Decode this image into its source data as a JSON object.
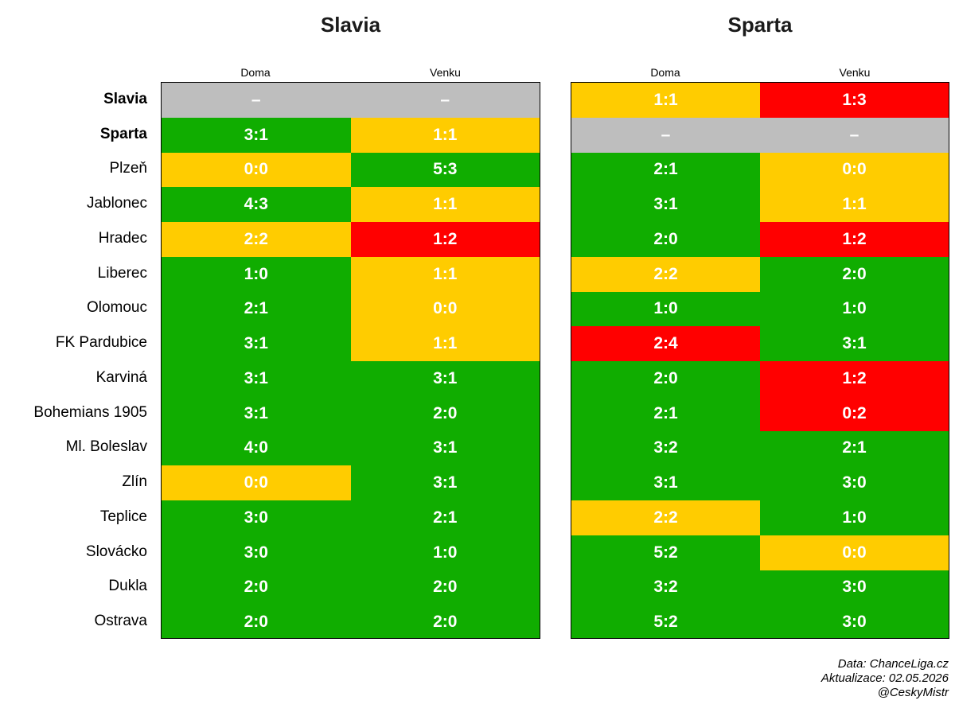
{
  "chart_data": {
    "type": "table",
    "colors": {
      "win": "#10AD00",
      "draw": "#FFCC00",
      "loss": "#FF0000",
      "na": "#BEBEBE"
    },
    "rows": [
      "Slavia",
      "Sparta",
      "Plzeň",
      "Jablonec",
      "Hradec",
      "Liberec",
      "Olomouc",
      "FK Pardubice",
      "Karviná",
      "Bohemians 1905",
      "Ml. Boleslav",
      "Zlín",
      "Teplice",
      "Slovácko",
      "Dukla",
      "Ostrava"
    ],
    "bold_rows": [
      "Slavia",
      "Sparta"
    ],
    "panels": [
      {
        "title": "Slavia",
        "columns": [
          "Doma",
          "Venku"
        ],
        "results": [
          [
            "–",
            "–"
          ],
          [
            "3:1",
            "1:1"
          ],
          [
            "0:0",
            "5:3"
          ],
          [
            "4:3",
            "1:1"
          ],
          [
            "2:2",
            "1:2"
          ],
          [
            "1:0",
            "1:1"
          ],
          [
            "2:1",
            "0:0"
          ],
          [
            "3:1",
            "1:1"
          ],
          [
            "3:1",
            "3:1"
          ],
          [
            "3:1",
            "2:0"
          ],
          [
            "4:0",
            "3:1"
          ],
          [
            "0:0",
            "3:1"
          ],
          [
            "3:0",
            "2:1"
          ],
          [
            "3:0",
            "1:0"
          ],
          [
            "2:0",
            "2:0"
          ],
          [
            "2:0",
            "2:0"
          ]
        ]
      },
      {
        "title": "Sparta",
        "columns": [
          "Doma",
          "Venku"
        ],
        "results": [
          [
            "1:1",
            "1:3"
          ],
          [
            "–",
            "–"
          ],
          [
            "2:1",
            "0:0"
          ],
          [
            "3:1",
            "1:1"
          ],
          [
            "2:0",
            "1:2"
          ],
          [
            "2:2",
            "2:0"
          ],
          [
            "1:0",
            "1:0"
          ],
          [
            "2:4",
            "3:1"
          ],
          [
            "2:0",
            "1:2"
          ],
          [
            "2:1",
            "0:2"
          ],
          [
            "3:2",
            "2:1"
          ],
          [
            "3:1",
            "3:0"
          ],
          [
            "2:2",
            "1:0"
          ],
          [
            "5:2",
            "0:0"
          ],
          [
            "3:2",
            "3:0"
          ],
          [
            "5:2",
            "3:0"
          ]
        ]
      }
    ]
  },
  "footer": {
    "line1": "Data: ChanceLiga.cz",
    "line2": "Aktualizace:  02.05.2026",
    "line3": "@CeskyMistr"
  }
}
